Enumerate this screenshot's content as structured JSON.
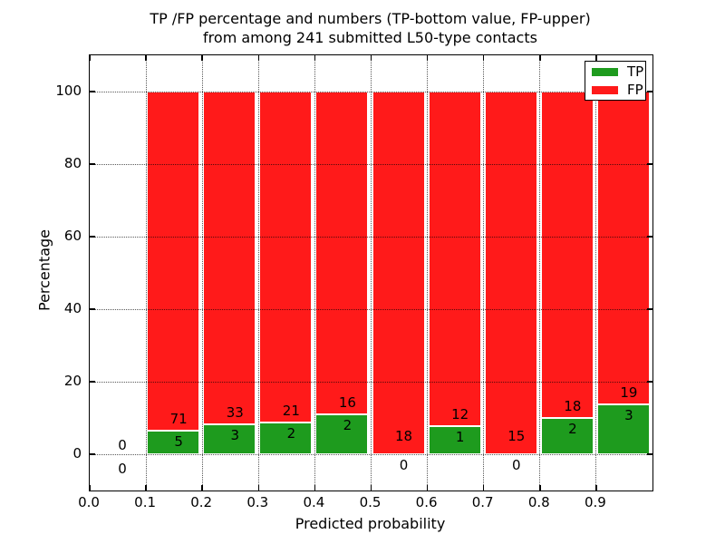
{
  "chart_data": {
    "type": "bar",
    "stacked": true,
    "title": "TP /FP percentage and numbers (TP-bottom value, FP-upper)\nfrom among 241 submitted L50-type contacts",
    "title_line1": "TP /FP percentage and numbers (TP-bottom value, FP-upper)",
    "title_line2": "from among 241 submitted L50-type contacts",
    "xlabel": "Predicted probability",
    "ylabel": "Percentage",
    "xlim": [
      0.0,
      1.0
    ],
    "ylim": [
      -10,
      110
    ],
    "x_tick_labels": [
      "0.0",
      "0.1",
      "0.2",
      "0.3",
      "0.4",
      "0.5",
      "0.6",
      "0.7",
      "0.8",
      "0.9"
    ],
    "y_tick_values": [
      0,
      20,
      40,
      60,
      80,
      100
    ],
    "grid": "dotted, drawn over bars",
    "total_contacts": 241,
    "colors": {
      "tp": "#1e9b1e",
      "fp": "#ff1a1a"
    },
    "legend": {
      "position": "upper right",
      "entries": [
        {
          "label": "TP",
          "color": "#1e9b1e"
        },
        {
          "label": "FP",
          "color": "#ff1a1a"
        }
      ]
    },
    "bins": [
      {
        "x_start": 0.0,
        "x_end": 0.1,
        "tp_count": 0,
        "fp_count": 0,
        "tp_pct": 0,
        "fp_pct": 0
      },
      {
        "x_start": 0.1,
        "x_end": 0.2,
        "tp_count": 5,
        "fp_count": 71,
        "tp_pct": 6.58,
        "fp_pct": 93.42
      },
      {
        "x_start": 0.2,
        "x_end": 0.3,
        "tp_count": 3,
        "fp_count": 33,
        "tp_pct": 8.33,
        "fp_pct": 91.67
      },
      {
        "x_start": 0.3,
        "x_end": 0.4,
        "tp_count": 2,
        "fp_count": 21,
        "tp_pct": 8.7,
        "fp_pct": 91.3
      },
      {
        "x_start": 0.4,
        "x_end": 0.5,
        "tp_count": 2,
        "fp_count": 16,
        "tp_pct": 11.11,
        "fp_pct": 88.89
      },
      {
        "x_start": 0.5,
        "x_end": 0.6,
        "tp_count": 0,
        "fp_count": 18,
        "tp_pct": 0,
        "fp_pct": 100
      },
      {
        "x_start": 0.6,
        "x_end": 0.7,
        "tp_count": 1,
        "fp_count": 12,
        "tp_pct": 7.69,
        "fp_pct": 92.31
      },
      {
        "x_start": 0.7,
        "x_end": 0.8,
        "tp_count": 0,
        "fp_count": 15,
        "tp_pct": 0,
        "fp_pct": 100
      },
      {
        "x_start": 0.8,
        "x_end": 0.9,
        "tp_count": 2,
        "fp_count": 18,
        "tp_pct": 10.0,
        "fp_pct": 90.0
      },
      {
        "x_start": 0.9,
        "x_end": 1.0,
        "tp_count": 3,
        "fp_count": 19,
        "tp_pct": 13.64,
        "fp_pct": 86.36
      }
    ]
  }
}
